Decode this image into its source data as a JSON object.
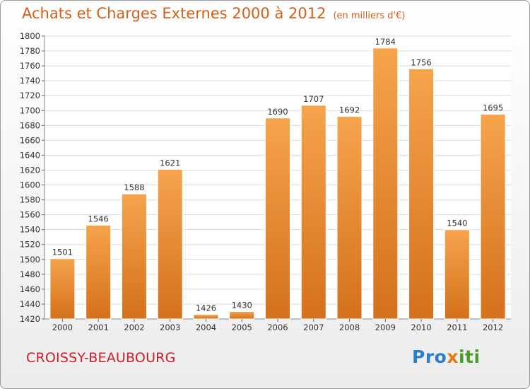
{
  "header": {
    "title": "Achats et Charges Externes 2000 à 2012",
    "subtitle": "(en milliers d'€)"
  },
  "footer": {
    "commune": "CROISSY-BEAUBOURG",
    "logo_text": "Proxiti"
  },
  "colors": {
    "bar_top": "#f6a44c",
    "bar_bottom": "#d5701c",
    "title": "#d2601a",
    "commune": "#d21d2a"
  },
  "chart_data": {
    "type": "bar",
    "title": "Achats et Charges Externes 2000 à 2012",
    "subtitle": "(en milliers d'€)",
    "xlabel": "",
    "ylabel": "",
    "categories": [
      "2000",
      "2001",
      "2002",
      "2003",
      "2004",
      "2005",
      "2006",
      "2007",
      "2008",
      "2009",
      "2010",
      "2011",
      "2012"
    ],
    "values": [
      1501,
      1546,
      1588,
      1621,
      1426,
      1430,
      1690,
      1707,
      1692,
      1784,
      1756,
      1540,
      1695
    ],
    "ylim": [
      1420,
      1800
    ],
    "ytick_step": 20,
    "grid": true
  }
}
